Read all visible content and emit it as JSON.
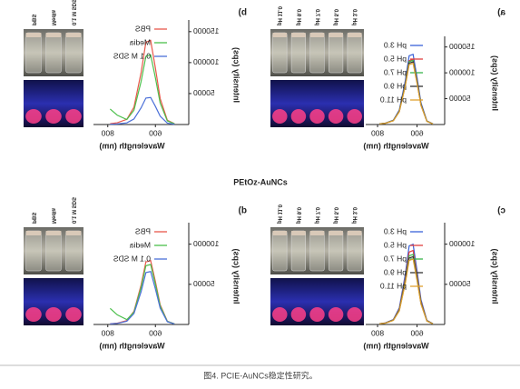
{
  "figure_title": "PEtOz-AuNCs",
  "caption": "图4. PCIE-AuNCs稳定性研究。",
  "chart_data": [
    {
      "type": "line",
      "panel": "a)",
      "x_label": "Wavelength (nm)",
      "y_label": "Intensity (cps)",
      "x": [
        520,
        550,
        580,
        600,
        620,
        640,
        660,
        690,
        720,
        760,
        790
      ],
      "xlim": [
        460,
        860
      ],
      "xticks": [
        600,
        800
      ],
      "ylim": [
        0,
        160000
      ],
      "yticks": [
        50000,
        100000,
        150000
      ],
      "series": [
        {
          "name": "pH 3.0",
          "color": "#3a62d8",
          "values": [
            1400,
            7000,
            42000,
            91000,
            135800,
            133000,
            84000,
            28000,
            8400,
            2800,
            1400
          ]
        },
        {
          "name": "pH 5.0",
          "color": "#e04040",
          "values": [
            1300,
            6500,
            39000,
            84500,
            126100,
            123500,
            78000,
            26000,
            7800,
            2600,
            1300
          ]
        },
        {
          "name": "pH 7.0",
          "color": "#39b54a",
          "values": [
            1280,
            6400,
            38400,
            83200,
            124160,
            121600,
            76800,
            25600,
            7680,
            2560,
            1280
          ]
        },
        {
          "name": "pH 9.0",
          "color": "#333333",
          "values": [
            1250,
            6250,
            37500,
            81250,
            121250,
            118750,
            75000,
            25000,
            7500,
            2500,
            1250
          ]
        },
        {
          "name": "pH 11.0",
          "color": "#e0a030",
          "values": [
            1220,
            6100,
            36600,
            79300,
            118340,
            115900,
            73200,
            24400,
            7320,
            2440,
            1220
          ]
        }
      ],
      "photo_labels": [
        "pH 3.0",
        "pH 5.0",
        "pH 7.0",
        "pH 9.0",
        "pH 11.0"
      ]
    },
    {
      "type": "line",
      "panel": "b)",
      "x_label": "Wavelength (nm)",
      "y_label": "Intensity (cps)",
      "x": [
        520,
        550,
        580,
        600,
        620,
        640,
        660,
        690,
        720,
        760,
        790
      ],
      "xlim": [
        460,
        860
      ],
      "xticks": [
        600,
        800
      ],
      "ylim": [
        0,
        160000
      ],
      "yticks": [
        50000,
        100000,
        150000
      ],
      "series": [
        {
          "name": "PBS",
          "color": "#e8584a",
          "values": [
            1400,
            7000,
            42000,
            91000,
            135800,
            133000,
            84000,
            28000,
            8400,
            2800,
            1400
          ]
        },
        {
          "name": "Media",
          "color": "#4cc04c",
          "values": [
            1160,
            5800,
            34800,
            75400,
            112520,
            110200,
            69600,
            23200,
            8000,
            15000,
            25000
          ]
        },
        {
          "name": "0.1 M SDS",
          "color": "#4a6fd8",
          "values": [
            450,
            2250,
            13500,
            29250,
            43650,
            42750,
            27000,
            9000,
            2700,
            900,
            450
          ]
        }
      ],
      "photo_labels": [
        "0.1 M SDS",
        "Media",
        "PBS"
      ]
    },
    {
      "type": "line",
      "panel": "c)",
      "x_label": "Wavelength (nm)",
      "y_label": "Intensity (cps)",
      "x": [
        520,
        550,
        580,
        600,
        620,
        640,
        660,
        690,
        720,
        760,
        790
      ],
      "xlim": [
        460,
        860
      ],
      "xticks": [
        600,
        800
      ],
      "ylim": [
        0,
        120000
      ],
      "yticks": [
        50000,
        100000
      ],
      "series": [
        {
          "name": "pH 3.0",
          "color": "#3a62d8",
          "values": [
            1030,
            5150,
            30900,
            66950,
            99910,
            97850,
            61800,
            20600,
            6180,
            2060,
            1030
          ]
        },
        {
          "name": "pH 5.0",
          "color": "#e04040",
          "values": [
            950,
            4750,
            28500,
            61750,
            92150,
            90250,
            57000,
            19000,
            5700,
            1900,
            950
          ]
        },
        {
          "name": "pH 7.0",
          "color": "#39b54a",
          "values": [
            900,
            4500,
            27000,
            58500,
            87300,
            85500,
            54000,
            18000,
            5400,
            1800,
            900
          ]
        },
        {
          "name": "pH 9.0",
          "color": "#333333",
          "values": [
            870,
            4350,
            26100,
            56550,
            84390,
            82650,
            52200,
            17400,
            5220,
            1740,
            870
          ]
        },
        {
          "name": "pH 11.0",
          "color": "#e0a030",
          "values": [
            840,
            4200,
            25200,
            54600,
            81480,
            79800,
            50400,
            16800,
            5040,
            1680,
            840
          ]
        }
      ],
      "photo_labels": [
        "pH 3.0",
        "pH 5.0",
        "pH 7.0",
        "pH 9.0",
        "pH 11.0"
      ]
    },
    {
      "type": "line",
      "panel": "d)",
      "x_label": "Wavelength (nm)",
      "y_label": "Intensity (cps)",
      "x": [
        520,
        550,
        580,
        600,
        620,
        640,
        660,
        690,
        720,
        760,
        790
      ],
      "xlim": [
        460,
        860
      ],
      "xticks": [
        600,
        800
      ],
      "ylim": [
        0,
        120000
      ],
      "yticks": [
        50000,
        100000
      ],
      "series": [
        {
          "name": "PBS",
          "color": "#e8584a",
          "values": [
            820,
            4100,
            24600,
            53300,
            79540,
            77900,
            49200,
            16400,
            4920,
            1640,
            820
          ]
        },
        {
          "name": "Media",
          "color": "#4cc04c",
          "values": [
            770,
            3850,
            23100,
            50050,
            74690,
            73150,
            46200,
            15400,
            6000,
            12000,
            20000
          ]
        },
        {
          "name": "0.1 M SDS",
          "color": "#4a6fd8",
          "values": [
            680,
            3400,
            20400,
            44200,
            65960,
            64600,
            40800,
            13600,
            4080,
            1360,
            680
          ]
        }
      ],
      "photo_labels": [
        "0.1 M SDS",
        "Media",
        "PBS"
      ]
    }
  ]
}
